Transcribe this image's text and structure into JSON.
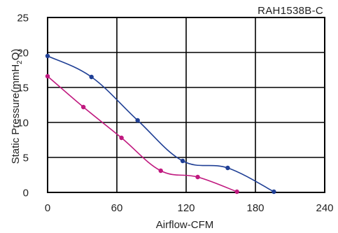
{
  "chart_data": {
    "type": "line",
    "title": "RAH1538B-C",
    "xlabel": "Airflow-CFM",
    "ylabel_main": "Static Pressure(mmH",
    "ylabel_sub": "2",
    "ylabel_end": "O)",
    "xlim": [
      0,
      240
    ],
    "ylim": [
      0,
      25
    ],
    "x_ticks": [
      "0",
      "60",
      "120",
      "180",
      "240"
    ],
    "y_ticks": [
      "0",
      "5",
      "10",
      "15",
      "20",
      "25"
    ],
    "grid": true,
    "series": [
      {
        "color": "#1f3f95",
        "points": [
          [
            0,
            19.5
          ],
          [
            38,
            16.5
          ],
          [
            78,
            10.3
          ],
          [
            117,
            4.5
          ],
          [
            156,
            3.5
          ],
          [
            196,
            0.1
          ]
        ]
      },
      {
        "color": "#c0197f",
        "points": [
          [
            0,
            16.6
          ],
          [
            31,
            12.2
          ],
          [
            64,
            7.8
          ],
          [
            98,
            3.1
          ],
          [
            130,
            2.2
          ],
          [
            164,
            0.1
          ]
        ]
      }
    ]
  }
}
